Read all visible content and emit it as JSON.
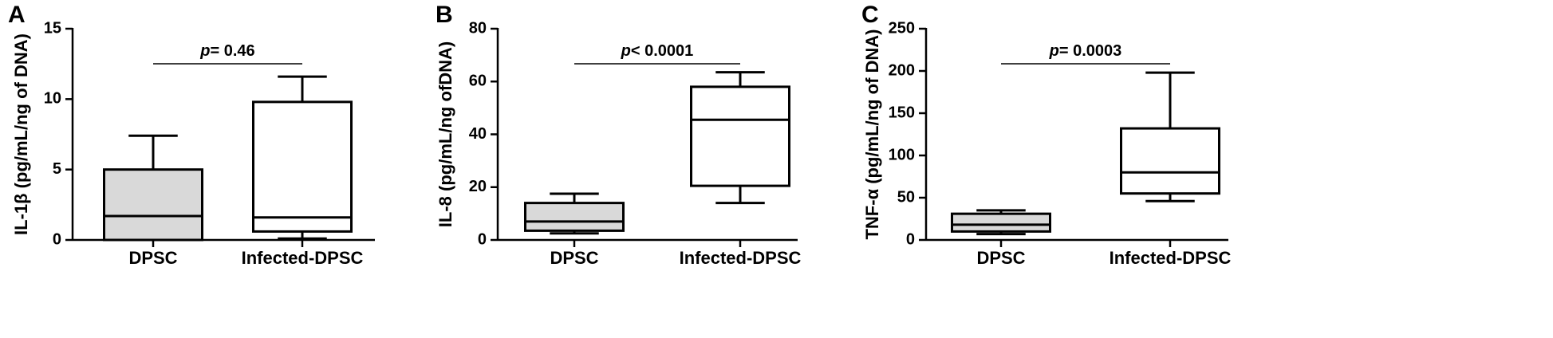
{
  "chart_data": [
    {
      "type": "box",
      "panel": "A",
      "ylabel": "IL-1β (pg/mL/ng of DNA)",
      "ylim": [
        0,
        15
      ],
      "yticks": [
        "0",
        "5",
        "10",
        "15"
      ],
      "categories": [
        "DPSC",
        "Infected-DPSC"
      ],
      "boxes": [
        {
          "min": 0,
          "q1": 0,
          "median": 1.7,
          "q3": 5.0,
          "max": 7.4
        },
        {
          "min": 0.1,
          "q1": 0.6,
          "median": 1.6,
          "q3": 9.8,
          "max": 11.6
        }
      ],
      "pvalue": {
        "prefix": "p",
        "text": "= 0.46"
      }
    },
    {
      "type": "box",
      "panel": "B",
      "ylabel": "IL-8 (pg/mL/ng ofDNA)",
      "ylim": [
        0,
        80
      ],
      "yticks": [
        "0",
        "20",
        "40",
        "60",
        "80"
      ],
      "categories": [
        "DPSC",
        "Infected-DPSC"
      ],
      "boxes": [
        {
          "min": 2.5,
          "q1": 3.5,
          "median": 7,
          "q3": 14,
          "max": 17.5
        },
        {
          "min": 14,
          "q1": 20.5,
          "median": 45.5,
          "q3": 58,
          "max": 63.5
        }
      ],
      "pvalue": {
        "prefix": "p",
        "text": "< 0.0001"
      }
    },
    {
      "type": "box",
      "panel": "C",
      "ylabel": "TNF-α (pg/mL/ng of DNA)",
      "ylim": [
        0,
        250
      ],
      "yticks": [
        "0",
        "50",
        "100",
        "150",
        "200",
        "250"
      ],
      "categories": [
        "DPSC",
        "Infected-DPSC"
      ],
      "boxes": [
        {
          "min": 7,
          "q1": 10,
          "median": 18,
          "q3": 31,
          "max": 35
        },
        {
          "min": 46,
          "q1": 55,
          "median": 80,
          "q3": 132,
          "max": 198
        }
      ],
      "pvalue": {
        "prefix": "p",
        "text": "= 0.0003"
      }
    }
  ],
  "colors": {
    "dpsc_fill": "#d9d9d9",
    "infected_fill": "#ffffff",
    "stroke": "#000000"
  }
}
